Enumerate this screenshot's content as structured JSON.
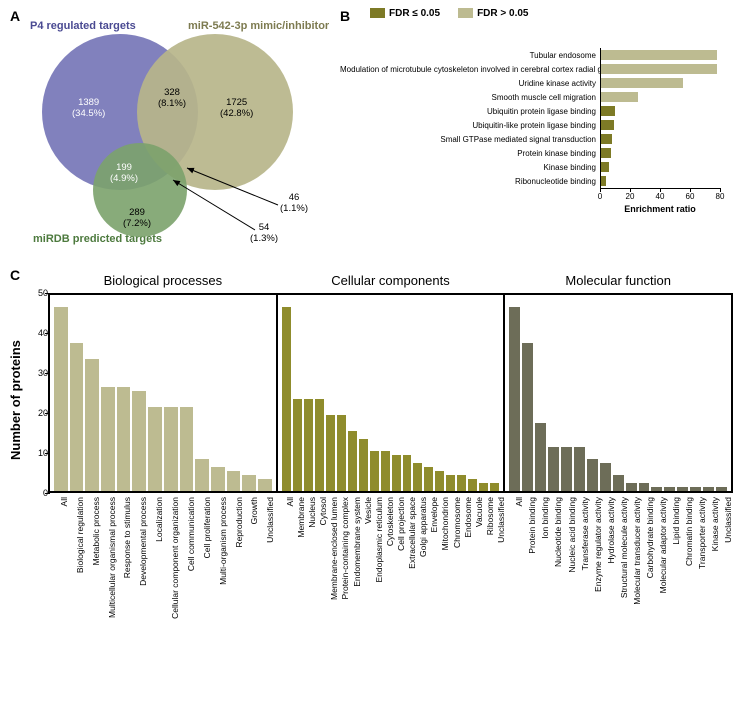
{
  "panel_a": {
    "label": "A",
    "sets": {
      "p4": {
        "title": "P4 regulated targets",
        "color": "#7070b4",
        "opacity": 0.88
      },
      "mir": {
        "title": "miR-542-3p mimic/inhibitor",
        "color": "#b7b58a",
        "opacity": 0.92
      },
      "mirdb": {
        "title": "miRDB predicted targets",
        "color": "#7ba26c",
        "opacity": 0.9
      }
    },
    "regions": {
      "p4_only": {
        "n": "1389",
        "pct": "(34.5%)"
      },
      "mir_only": {
        "n": "1725",
        "pct": "(42.8%)"
      },
      "mirdb_only": {
        "n": "289",
        "pct": "(7.2%)"
      },
      "p4_mir": {
        "n": "328",
        "pct": "(8.1%)"
      },
      "p4_mirdb": {
        "n": "199",
        "pct": "(4.9%)"
      },
      "mir_mirdb": {
        "n": "46",
        "pct": "(1.1%)"
      },
      "all3": {
        "n": "54",
        "pct": "(1.3%)"
      }
    }
  },
  "panel_b": {
    "label": "B",
    "legend": {
      "sig_label": "FDR  ≤ 0.05",
      "sig_color": "#7d7a26",
      "ns_label": "FDR  > 0.05",
      "ns_color": "#bdbb91"
    },
    "xlim": [
      0,
      80
    ],
    "xticks": [
      0,
      20,
      40,
      60,
      80
    ],
    "xlabel": "Enrichment ratio",
    "items": [
      {
        "label": "Tubular endosome",
        "value": 78,
        "sig": false
      },
      {
        "label": "Modulation of microtubule cytoskeleton involved in cerebral cortex radial glia guided migration",
        "value": 78,
        "sig": false
      },
      {
        "label": "Uridine kinase activity",
        "value": 55,
        "sig": false
      },
      {
        "label": "Smooth muscle cell migration",
        "value": 25,
        "sig": false
      },
      {
        "label": "Ubiquitin protein ligase binding",
        "value": 10,
        "sig": true
      },
      {
        "label": "Ubiquitin-like protein ligase binding",
        "value": 9,
        "sig": true
      },
      {
        "label": "Small GTPase mediated signal transduction",
        "value": 8,
        "sig": true
      },
      {
        "label": "Protein kinase binding",
        "value": 7,
        "sig": true
      },
      {
        "label": "Kinase binding",
        "value": 6,
        "sig": true
      },
      {
        "label": "Ribonucleotide binding",
        "value": 4,
        "sig": true
      }
    ]
  },
  "panel_c": {
    "label": "C",
    "ylabel": "Number of proteins",
    "ylim": [
      0,
      50
    ],
    "yticks": [
      0,
      10,
      20,
      30,
      40,
      50
    ],
    "groups": [
      {
        "title": "Biological processes",
        "color": "#bdbb91",
        "items": [
          {
            "l": "All",
            "v": 46
          },
          {
            "l": "Biological regulation",
            "v": 37
          },
          {
            "l": "Metabolic process",
            "v": 33
          },
          {
            "l": "Multicellular organismal process",
            "v": 26
          },
          {
            "l": "Response to stimulus",
            "v": 26
          },
          {
            "l": "Developmental process",
            "v": 25
          },
          {
            "l": "Localization",
            "v": 21
          },
          {
            "l": "Cellular component organization",
            "v": 21
          },
          {
            "l": "Cell communication",
            "v": 21
          },
          {
            "l": "Cell proliferation",
            "v": 8
          },
          {
            "l": "Multi-organism process",
            "v": 6
          },
          {
            "l": "Reproduction",
            "v": 5
          },
          {
            "l": "Growth",
            "v": 4
          },
          {
            "l": "Unclassified",
            "v": 3
          }
        ]
      },
      {
        "title": "Cellular components",
        "color": "#8f8c2c",
        "items": [
          {
            "l": "All",
            "v": 46
          },
          {
            "l": "Membrane",
            "v": 23
          },
          {
            "l": "Nucleus",
            "v": 23
          },
          {
            "l": "Cytosol",
            "v": 23
          },
          {
            "l": "Membrane-enclosed lumen",
            "v": 19
          },
          {
            "l": "Protein-containing complex",
            "v": 19
          },
          {
            "l": "Endomembrane system",
            "v": 15
          },
          {
            "l": "Vesicle",
            "v": 13
          },
          {
            "l": "Endoplasmic reticulum",
            "v": 10
          },
          {
            "l": "Cytoskeleton",
            "v": 10
          },
          {
            "l": "Cell projection",
            "v": 9
          },
          {
            "l": "Extracellular space",
            "v": 9
          },
          {
            "l": "Golgi apparatus",
            "v": 7
          },
          {
            "l": "Envelope",
            "v": 6
          },
          {
            "l": "Mitochondrion",
            "v": 5
          },
          {
            "l": "Chromosome",
            "v": 4
          },
          {
            "l": "Endosome",
            "v": 4
          },
          {
            "l": "Vacuole",
            "v": 3
          },
          {
            "l": "Ribosome",
            "v": 2
          },
          {
            "l": "Unclassified",
            "v": 2
          }
        ]
      },
      {
        "title": "Molecular function",
        "color": "#6d6d58",
        "items": [
          {
            "l": "All",
            "v": 46
          },
          {
            "l": "Protein binding",
            "v": 37
          },
          {
            "l": "Ion binding",
            "v": 17
          },
          {
            "l": "Nucleotide binding",
            "v": 11
          },
          {
            "l": "Nucleic acid binding",
            "v": 11
          },
          {
            "l": "Transferase activity",
            "v": 11
          },
          {
            "l": "Enzyme regulator activity",
            "v": 8
          },
          {
            "l": "Hydrolase activity",
            "v": 7
          },
          {
            "l": "Structural molecule activity",
            "v": 4
          },
          {
            "l": "Molecular transducer activity",
            "v": 2
          },
          {
            "l": "Carbohydrate binding",
            "v": 2
          },
          {
            "l": "Molecular adaptor activity",
            "v": 1
          },
          {
            "l": "Lipid binding",
            "v": 1
          },
          {
            "l": "Chromatin binding",
            "v": 1
          },
          {
            "l": "Transporter activity",
            "v": 1
          },
          {
            "l": "Kinase activity",
            "v": 1
          },
          {
            "l": "Unclassified",
            "v": 1
          }
        ]
      }
    ]
  }
}
